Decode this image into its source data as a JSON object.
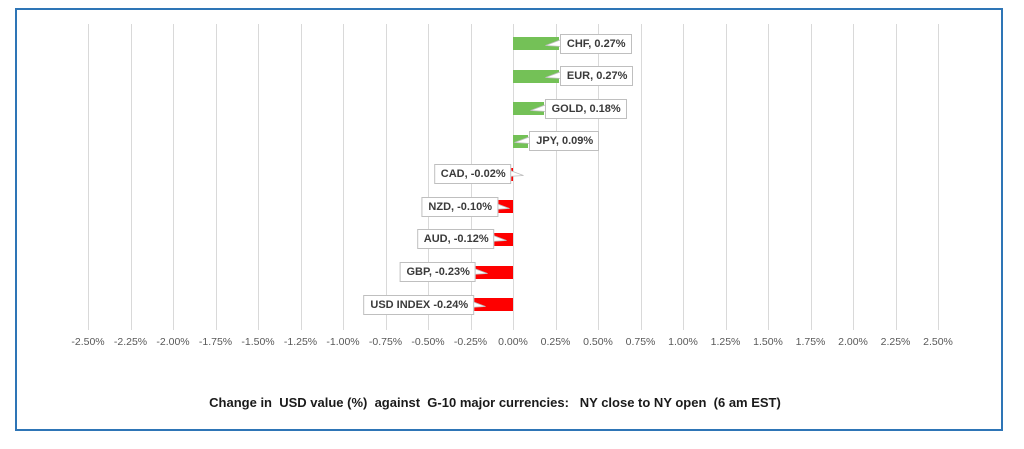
{
  "chart_data": {
    "type": "bar",
    "orientation": "horizontal",
    "title": "Change in  USD value (%)  against  G-10 major currencies:   NY close to NY open  (6 am EST)",
    "categories": [
      "CHF",
      "EUR",
      "GOLD",
      "JPY",
      "CAD",
      "NZD",
      "AUD",
      "GBP",
      "USD INDEX"
    ],
    "values": [
      0.27,
      0.27,
      0.18,
      0.09,
      -0.02,
      -0.1,
      -0.12,
      -0.23,
      -0.24
    ],
    "data_labels": [
      "CHF, 0.27%",
      "EUR, 0.27%",
      "GOLD, 0.18%",
      "JPY, 0.09%",
      "CAD, -0.02%",
      "NZD, -0.10%",
      "AUD, -0.12%",
      "GBP, -0.23%",
      "USD INDEX -0.24%"
    ],
    "xlabel": "",
    "ylabel": "",
    "xlim": [
      -2.5,
      2.5
    ],
    "tick_step": 0.25,
    "tick_labels": [
      "-2.50%",
      "-2.25%",
      "-2.00%",
      "-1.75%",
      "-1.50%",
      "-1.25%",
      "-1.00%",
      "-0.75%",
      "-0.50%",
      "-0.25%",
      "0.00%",
      "0.25%",
      "0.50%",
      "0.75%",
      "1.00%",
      "1.25%",
      "1.50%",
      "1.75%",
      "2.00%",
      "2.25%",
      "2.50%"
    ],
    "grid": true,
    "legend": "none",
    "colors": {
      "positive": "#74C157",
      "negative": "#FE0000",
      "gridline": "#D9D9D9",
      "tick_text": "#595959",
      "title_text": "#1a1a1a",
      "label_border": "#BFBFBF",
      "label_bg": "#FFFFFF",
      "frame_border": "#2E75B6"
    }
  }
}
